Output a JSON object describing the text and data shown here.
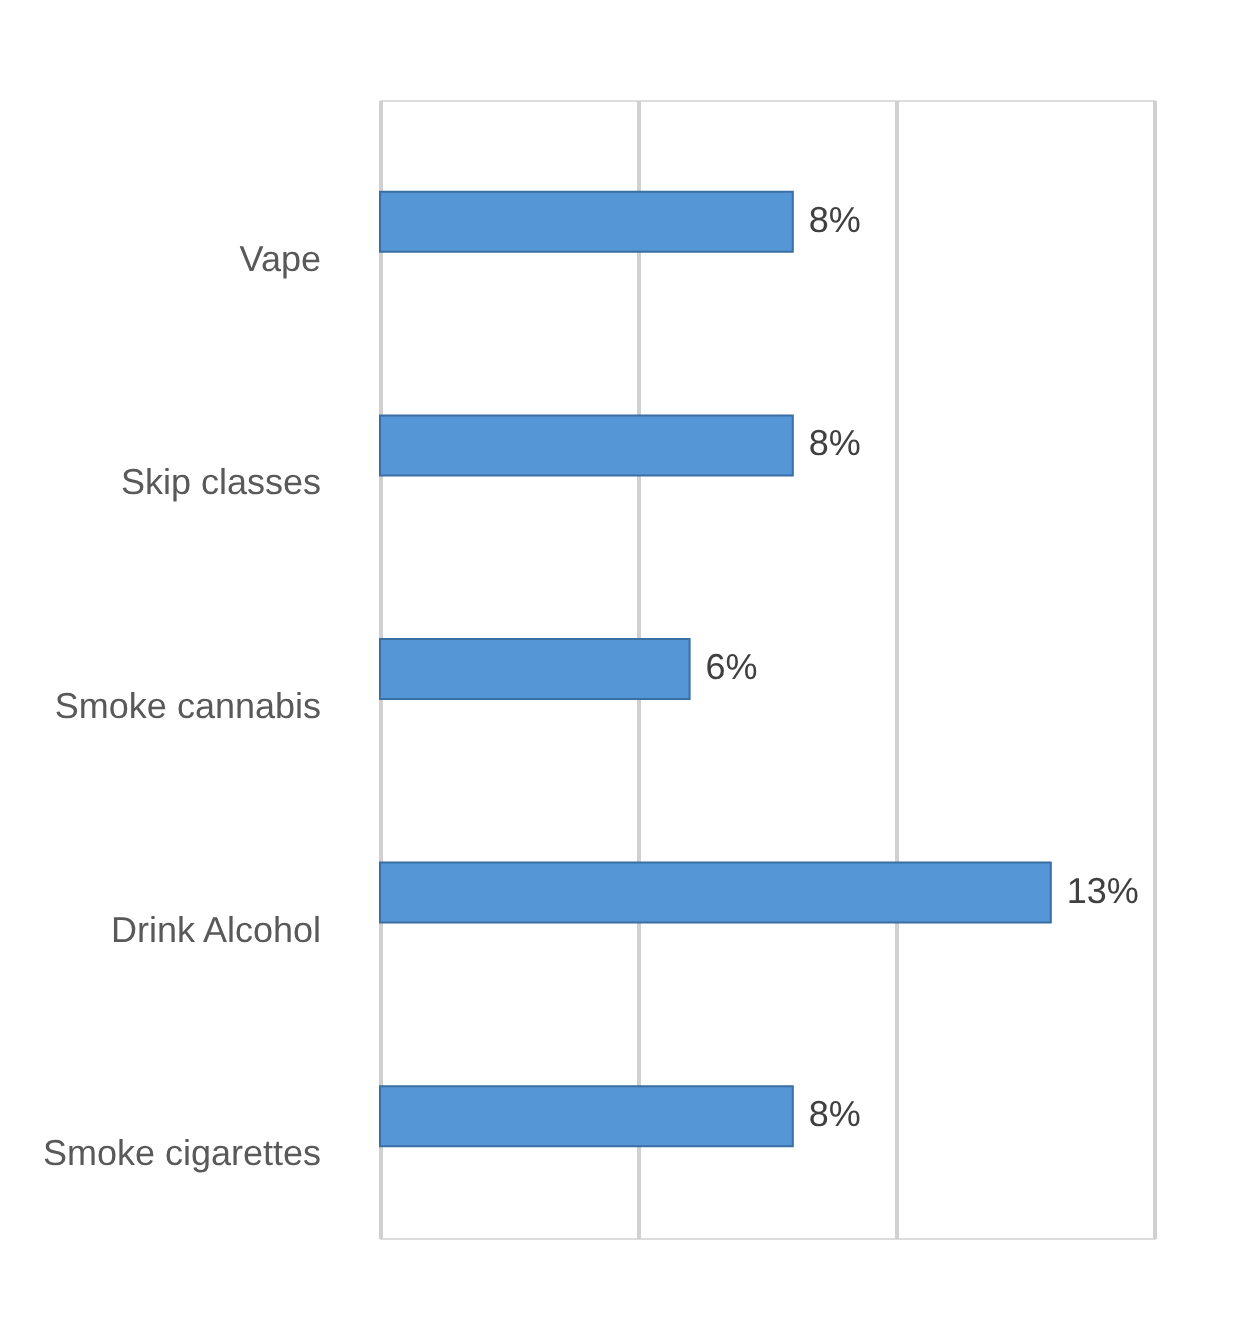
{
  "chart_data": {
    "type": "bar",
    "orientation": "horizontal",
    "categories": [
      "Vape",
      "Skip classes",
      "Smoke cannabis",
      "Drink Alcohol",
      "Smoke cigarettes"
    ],
    "values": [
      8,
      8,
      6,
      13,
      8
    ],
    "value_labels": [
      "8%",
      "8%",
      "6%",
      "13%",
      "8%"
    ],
    "color": "#5596d6",
    "xlim": [
      0,
      15
    ],
    "xticks": [
      {
        "value": 0,
        "label": null
      },
      {
        "value": 5,
        "label": null
      },
      {
        "value": 10,
        "label": null
      },
      {
        "value": 15,
        "label": null
      }
    ],
    "grid": "x",
    "tick_labels": "y"
  }
}
